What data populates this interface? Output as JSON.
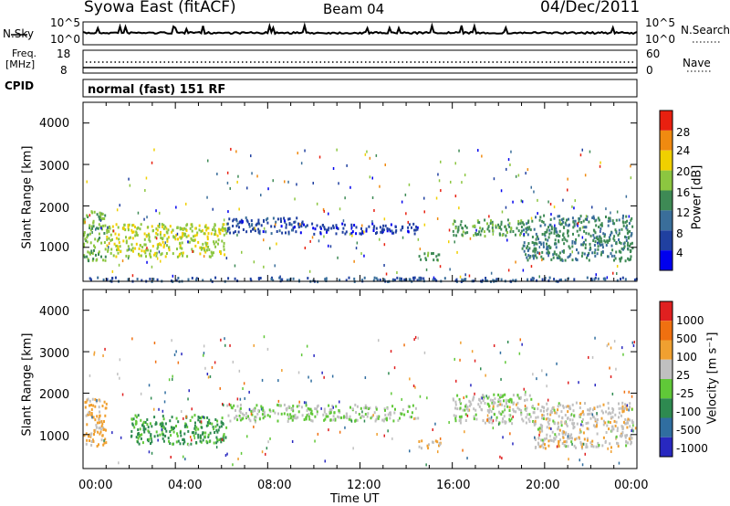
{
  "header": {
    "station": "Syowa East (fitACF)",
    "beam": "Beam 04",
    "date": "04/Dec/2011"
  },
  "strip_nsky": {
    "left_label": "N.Sky",
    "right_label": "N.Search",
    "tick_top": "10^5",
    "tick_bottom": "10^0",
    "right_tick_top": "10^5",
    "right_tick_bottom": "10^0"
  },
  "strip_freq": {
    "left_label": "Freq.",
    "left_unit": "[MHz]",
    "right_label": "Nave",
    "left_ticks": [
      "18",
      "8"
    ],
    "right_ticks": [
      "60",
      "0"
    ]
  },
  "strip_cpid": {
    "left_label": "CPID",
    "mode_text": "normal (fast) 151 RF"
  },
  "power_panel": {
    "ylabel": "Slant Range [km]",
    "yticks": [
      "4000",
      "3000",
      "2000",
      "1000"
    ],
    "colorbar_label": "Power [dB]",
    "colorbar_ticks": [
      "28",
      "24",
      "20",
      "16",
      "12",
      "8",
      "4"
    ],
    "colors": [
      "#0000ee",
      "#2040a0",
      "#3a6e9a",
      "#3e8a55",
      "#8cc640",
      "#f0d000",
      "#f08a10",
      "#e82010"
    ]
  },
  "velocity_panel": {
    "ylabel": "Slant Range [km]",
    "yticks": [
      "4000",
      "3000",
      "2000",
      "1000"
    ],
    "colorbar_label": "Velocity [m s⁻¹]",
    "colorbar_ticks": [
      "1000",
      "500",
      "100",
      "25",
      "-25",
      "-100",
      "-500",
      "-1000"
    ],
    "colors": [
      "#2828c0",
      "#306ea0",
      "#2e8a50",
      "#60c838",
      "#c0c0c0",
      "#f0a030",
      "#f07010",
      "#e02020"
    ]
  },
  "x_axis": {
    "label": "Time UT",
    "ticks": [
      "00:00",
      "04:00",
      "08:00",
      "12:00",
      "16:00",
      "20:00",
      "00:00"
    ]
  },
  "chart_data": [
    {
      "type": "heatmap",
      "title": "Beam 04",
      "xlabel": "Time UT",
      "ylabel": "Slant Range [km]",
      "xlim": [
        0,
        24
      ],
      "ylim": [
        180,
        4500
      ],
      "colorbar": "Power [dB]",
      "colorbar_range": [
        0,
        30
      ],
      "features": [
        {
          "t": [
            0.0,
            1.0
          ],
          "range": [
            700,
            1900
          ],
          "value": 16
        },
        {
          "t": [
            1.0,
            6.2
          ],
          "range": [
            800,
            1600
          ],
          "value": 18
        },
        {
          "t": [
            6.2,
            9.5
          ],
          "range": [
            1350,
            1750
          ],
          "value": 6
        },
        {
          "t": [
            9.5,
            14.5
          ],
          "range": [
            1350,
            1600
          ],
          "value": 5
        },
        {
          "t": [
            14.5,
            15.5
          ],
          "range": [
            700,
            900
          ],
          "value": 14
        },
        {
          "t": [
            16.0,
            19.0
          ],
          "range": [
            1300,
            1700
          ],
          "value": 14
        },
        {
          "t": [
            19.0,
            23.8
          ],
          "range": [
            700,
            1800
          ],
          "value": 12
        },
        {
          "t": [
            0.0,
            24.0
          ],
          "range": [
            200,
            300
          ],
          "value": 8
        }
      ]
    },
    {
      "type": "heatmap",
      "title": "Beam 04",
      "xlabel": "Time UT",
      "ylabel": "Slant Range [km]",
      "xlim": [
        0,
        24
      ],
      "ylim": [
        180,
        4500
      ],
      "colorbar": "Velocity [m s⁻¹]",
      "colorbar_range": [
        -1000,
        1000
      ],
      "features": [
        {
          "t": [
            0.0,
            1.0
          ],
          "range": [
            700,
            1900
          ],
          "value": 300
        },
        {
          "t": [
            2.0,
            6.2
          ],
          "range": [
            800,
            1500
          ],
          "value": -300
        },
        {
          "t": [
            6.2,
            14.5
          ],
          "range": [
            1350,
            1750
          ],
          "value": 0
        },
        {
          "t": [
            14.5,
            15.5
          ],
          "range": [
            700,
            900
          ],
          "value": 200
        },
        {
          "t": [
            16.0,
            19.5
          ],
          "range": [
            1300,
            2000
          ],
          "value": 80
        },
        {
          "t": [
            19.5,
            23.8
          ],
          "range": [
            700,
            1800
          ],
          "value": 150
        }
      ]
    }
  ]
}
